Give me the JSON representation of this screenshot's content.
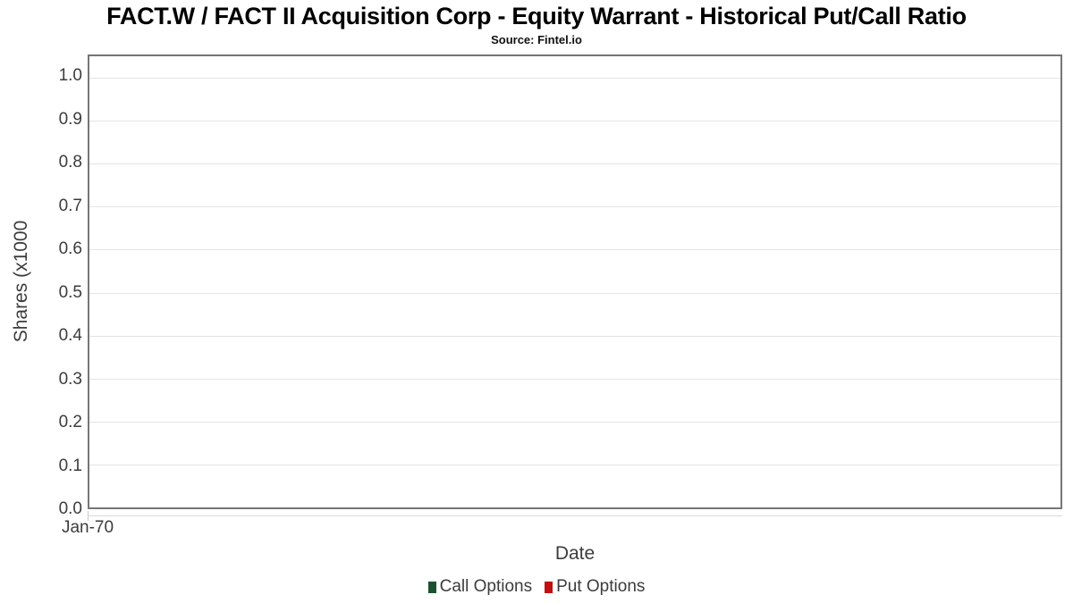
{
  "chart_data": {
    "type": "line",
    "title": "FACT.W / FACT II Acquisition Corp - Equity Warrant - Historical Put/Call Ratio",
    "subtitle": "Source: Fintel.io",
    "xlabel": "Date",
    "ylabel": "Shares (x1000",
    "x_ticks": [
      "Jan-70"
    ],
    "y_ticks": [
      "0.0",
      "0.1",
      "0.2",
      "0.3",
      "0.4",
      "0.5",
      "0.6",
      "0.7",
      "0.8",
      "0.9",
      "1.0"
    ],
    "ylim": [
      0,
      1.05
    ],
    "grid": true,
    "legend_position": "bottom",
    "series": [
      {
        "name": "Call Options",
        "color": "#1c5130",
        "values": []
      },
      {
        "name": "Put Options",
        "color": "#c01010",
        "values": []
      }
    ],
    "colors": {
      "plot_border": "#767676",
      "gridline": "#e4e4e4",
      "text": "#3c3c3c"
    }
  }
}
